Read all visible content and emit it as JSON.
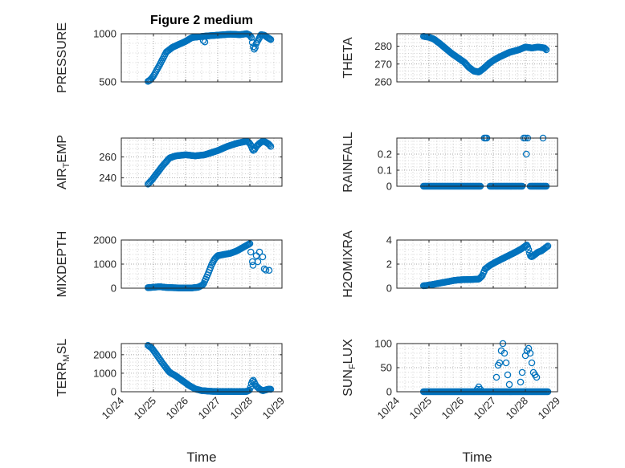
{
  "figure_title": "Figure 2 medium",
  "colors": {
    "marker": "#0072BD",
    "axis": "#262626",
    "grid": "#b0b0b0"
  },
  "chart_data": [
    {
      "id": "pressure",
      "type": "scatter",
      "ylabel": "PRESSURE",
      "ylabel_parts": null,
      "ylim": [
        500,
        1000
      ],
      "yticks": [
        500,
        1000
      ],
      "ytick_labels": [
        "500",
        "1000"
      ],
      "x_day_range": [
        24,
        29
      ],
      "grid": true,
      "segments": [
        {
          "t": [
            24.83,
            24.9,
            25.0,
            25.2,
            25.4,
            25.6,
            26.0,
            26.2,
            26.6,
            27.0,
            27.4,
            27.7,
            27.9,
            28.0,
            28.05,
            28.1,
            28.15,
            28.2,
            28.3,
            28.35,
            28.45,
            28.55,
            28.65
          ],
          "v": [
            505,
            520,
            560,
            680,
            810,
            860,
            920,
            960,
            975,
            985,
            995,
            990,
            1000,
            985,
            960,
            870,
            830,
            900,
            960,
            990,
            985,
            960,
            940
          ]
        }
      ],
      "extra_points": [
        {
          "t": 26.55,
          "v": 930
        },
        {
          "t": 26.6,
          "v": 915
        }
      ]
    },
    {
      "id": "theta",
      "type": "scatter",
      "ylabel": "THETA",
      "ylabel_parts": null,
      "ylim": [
        260,
        287
      ],
      "yticks": [
        260,
        270,
        280
      ],
      "ytick_labels": [
        "260",
        "270",
        "280"
      ],
      "x_day_range": [
        24,
        29
      ],
      "grid": true,
      "segments": [
        {
          "t": [
            24.83,
            25.0,
            25.15,
            25.3,
            25.5,
            25.7,
            25.9,
            26.1,
            26.25,
            26.4,
            26.55,
            26.7,
            26.85,
            27.0,
            27.2,
            27.5,
            27.8,
            28.0,
            28.2,
            28.4,
            28.6,
            28.65
          ],
          "v": [
            285.5,
            285,
            284,
            282,
            279,
            276,
            273.5,
            271,
            268,
            266,
            265.5,
            267.5,
            270,
            272,
            274,
            276.5,
            278,
            279.5,
            279,
            279.5,
            279,
            278
          ]
        }
      ],
      "extra_points": []
    },
    {
      "id": "air_temp",
      "type": "scatter",
      "ylabel": "AIR",
      "ylabel_parts": [
        "AIR",
        "T",
        "EMP"
      ],
      "ylim": [
        232,
        278
      ],
      "yticks": [
        240,
        260
      ],
      "ytick_labels": [
        "240",
        "260"
      ],
      "x_day_range": [
        24,
        29
      ],
      "grid": true,
      "segments": [
        {
          "t": [
            24.83,
            24.95,
            25.1,
            25.3,
            25.5,
            25.7,
            26.0,
            26.3,
            26.6,
            27.0,
            27.3,
            27.6,
            27.9,
            28.0,
            28.05,
            28.1,
            28.15,
            28.2,
            28.3,
            28.4,
            28.5,
            28.6,
            28.65
          ],
          "v": [
            234,
            238,
            244,
            252,
            259,
            261,
            262,
            261,
            262,
            266,
            270,
            273,
            275,
            273,
            270,
            266,
            267,
            270,
            273,
            275,
            274,
            272,
            270
          ]
        }
      ],
      "extra_points": []
    },
    {
      "id": "rainfall",
      "type": "scatter",
      "ylabel": "RAINFALL",
      "ylabel_parts": null,
      "ylim": [
        0,
        0.3
      ],
      "yticks": [
        0,
        0.1,
        0.2
      ],
      "ytick_labels": [
        "0",
        "0.1",
        "0.2"
      ],
      "x_day_range": [
        24,
        29
      ],
      "grid": true,
      "segments": [
        {
          "t": [
            24.83,
            25.0,
            25.2,
            25.4,
            25.6,
            25.8,
            26.0,
            26.2,
            26.4,
            26.6
          ],
          "v": [
            0,
            0,
            0,
            0,
            0,
            0,
            0,
            0,
            0,
            0
          ]
        },
        {
          "t": [
            26.9,
            27.1,
            27.3,
            27.5,
            27.7,
            27.9
          ],
          "v": [
            0,
            0,
            0,
            0,
            0,
            0
          ]
        },
        {
          "t": [
            28.15,
            28.25,
            28.35,
            28.45,
            28.55,
            28.65
          ],
          "v": [
            0,
            0,
            0,
            0,
            0,
            0
          ]
        }
      ],
      "extra_points": [
        {
          "t": 26.72,
          "v": 0.3
        },
        {
          "t": 26.76,
          "v": 0.3
        },
        {
          "t": 26.8,
          "v": 0.3
        },
        {
          "t": 27.95,
          "v": 0.3
        },
        {
          "t": 28.0,
          "v": 0.3
        },
        {
          "t": 28.03,
          "v": 0.2
        },
        {
          "t": 28.07,
          "v": 0.3
        },
        {
          "t": 28.55,
          "v": 0.3
        }
      ]
    },
    {
      "id": "mixdepth",
      "type": "scatter",
      "ylabel": "MIXDEPTH",
      "ylabel_parts": null,
      "ylim": [
        0,
        2000
      ],
      "yticks": [
        0,
        1000,
        2000
      ],
      "ytick_labels": [
        "0",
        "1000",
        "2000"
      ],
      "x_day_range": [
        24,
        29
      ],
      "grid": true,
      "segments": [
        {
          "t": [
            24.83,
            25.0,
            25.2,
            25.4,
            25.6,
            25.8,
            26.0,
            26.2,
            26.4,
            26.55,
            26.7,
            26.8,
            26.9,
            27.0,
            27.2,
            27.4,
            27.6,
            27.8,
            28.0
          ],
          "v": [
            20,
            40,
            60,
            30,
            20,
            10,
            5,
            10,
            40,
            150,
            600,
            950,
            1200,
            1350,
            1400,
            1450,
            1550,
            1700,
            1850
          ]
        }
      ],
      "extra_points": [
        {
          "t": 28.03,
          "v": 1500
        },
        {
          "t": 28.08,
          "v": 1100
        },
        {
          "t": 28.1,
          "v": 950
        },
        {
          "t": 28.2,
          "v": 1350
        },
        {
          "t": 28.25,
          "v": 1100
        },
        {
          "t": 28.3,
          "v": 1500
        },
        {
          "t": 28.4,
          "v": 1300
        },
        {
          "t": 28.45,
          "v": 800
        },
        {
          "t": 28.5,
          "v": 750
        },
        {
          "t": 28.6,
          "v": 740
        }
      ]
    },
    {
      "id": "h2omixra",
      "type": "scatter",
      "ylabel": "H2OMIXRA",
      "ylabel_parts": null,
      "ylim": [
        0,
        4
      ],
      "yticks": [
        0,
        2,
        4
      ],
      "ytick_labels": [
        "0",
        "2",
        "4"
      ],
      "x_day_range": [
        24,
        29
      ],
      "grid": true,
      "segments": [
        {
          "t": [
            24.83,
            25.0,
            25.2,
            25.4,
            25.6,
            25.8,
            26.0,
            26.3,
            26.55,
            26.65,
            26.75,
            26.9,
            27.1,
            27.4,
            27.7,
            27.9,
            28.05,
            28.1,
            28.15,
            28.2,
            28.3,
            28.4,
            28.5,
            28.6,
            28.7
          ],
          "v": [
            0.2,
            0.25,
            0.35,
            0.45,
            0.55,
            0.65,
            0.7,
            0.72,
            0.75,
            1.0,
            1.6,
            1.9,
            2.2,
            2.6,
            3.0,
            3.3,
            3.6,
            3.2,
            2.7,
            2.6,
            2.8,
            3.0,
            3.1,
            3.3,
            3.5
          ]
        }
      ],
      "extra_points": []
    },
    {
      "id": "terr_msl",
      "type": "scatter",
      "ylabel": "TERR",
      "ylabel_parts": [
        "TERR",
        "M",
        "SL"
      ],
      "ylim": [
        0,
        2600
      ],
      "yticks": [
        0,
        1000,
        2000
      ],
      "ytick_labels": [
        "0",
        "1000",
        "2000"
      ],
      "x_day_range": [
        24,
        29
      ],
      "grid": true,
      "segments": [
        {
          "t": [
            24.83,
            24.95,
            25.1,
            25.3,
            25.5,
            25.7,
            25.9,
            26.1,
            26.3,
            26.5,
            26.8,
            27.2,
            27.6,
            27.9,
            28.0,
            28.05,
            28.1,
            28.2,
            28.3,
            28.4,
            28.5,
            28.6,
            28.65
          ],
          "v": [
            2500,
            2350,
            2000,
            1500,
            1050,
            850,
            600,
            350,
            150,
            60,
            20,
            10,
            5,
            10,
            100,
            450,
            650,
            300,
            150,
            50,
            100,
            150,
            130
          ]
        }
      ],
      "extra_points": []
    },
    {
      "id": "sun_flux",
      "type": "scatter",
      "ylabel": "SUN",
      "ylabel_parts": [
        "SUN",
        "F",
        "LUX"
      ],
      "ylim": [
        0,
        100
      ],
      "yticks": [
        0,
        50,
        100
      ],
      "ytick_labels": [
        "0",
        "50",
        "100"
      ],
      "x_day_range": [
        24,
        29
      ],
      "grid": true,
      "segments": [
        {
          "t": [
            24.83,
            25.0,
            25.2,
            25.4,
            25.6,
            25.8,
            26.0,
            26.2,
            26.4,
            26.6,
            26.8,
            27.0,
            27.2,
            27.4,
            27.6,
            27.8,
            28.0,
            28.2,
            28.4,
            28.6,
            28.7
          ],
          "v": [
            0,
            0,
            0,
            0,
            0,
            0,
            0,
            0,
            0,
            0,
            0,
            0,
            0,
            0,
            0,
            0,
            0,
            0,
            0,
            0,
            0
          ]
        }
      ],
      "extra_points": [
        {
          "t": 26.5,
          "v": 5
        },
        {
          "t": 26.55,
          "v": 10
        },
        {
          "t": 26.6,
          "v": 5
        },
        {
          "t": 27.1,
          "v": 30
        },
        {
          "t": 27.15,
          "v": 55
        },
        {
          "t": 27.2,
          "v": 60
        },
        {
          "t": 27.25,
          "v": 85
        },
        {
          "t": 27.3,
          "v": 100
        },
        {
          "t": 27.35,
          "v": 80
        },
        {
          "t": 27.4,
          "v": 60
        },
        {
          "t": 27.45,
          "v": 35
        },
        {
          "t": 27.5,
          "v": 15
        },
        {
          "t": 27.85,
          "v": 20
        },
        {
          "t": 27.9,
          "v": 40
        },
        {
          "t": 28.0,
          "v": 75
        },
        {
          "t": 28.05,
          "v": 85
        },
        {
          "t": 28.1,
          "v": 90
        },
        {
          "t": 28.15,
          "v": 80
        },
        {
          "t": 28.2,
          "v": 60
        },
        {
          "t": 28.25,
          "v": 40
        },
        {
          "t": 28.3,
          "v": 35
        },
        {
          "t": 28.35,
          "v": 30
        }
      ]
    }
  ],
  "x_ticks": [
    {
      "day": 24,
      "label": "10/24"
    },
    {
      "day": 25,
      "label": "10/25"
    },
    {
      "day": 26,
      "label": "10/26"
    },
    {
      "day": 27,
      "label": "10/27"
    },
    {
      "day": 28,
      "label": "10/28"
    },
    {
      "day": 29,
      "label": "10/29"
    }
  ],
  "xlabel": "Time"
}
